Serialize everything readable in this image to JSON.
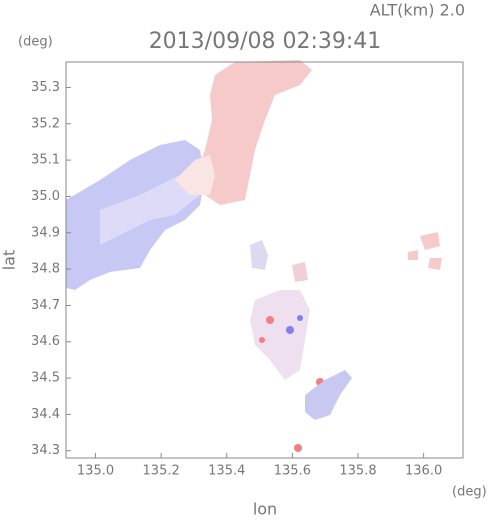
{
  "chart_data": {
    "type": "map",
    "title": "2013/09/08 02:39:41",
    "subtitle": "ALT(km) 2.0",
    "x_label": "lon",
    "x_unit": "(deg)",
    "y_label": "lat",
    "y_unit": "(deg)",
    "xlim": [
      134.91,
      136.12
    ],
    "xticks": [
      {
        "value": 135,
        "label": "135.0"
      },
      135.2,
      135.4,
      135.6,
      135.8,
      {
        "value": 136,
        "label": "136.0"
      }
    ],
    "ylim": [
      34.28,
      35.37
    ],
    "yticks": [
      34.3,
      34.4,
      34.5,
      34.6,
      34.7,
      34.8,
      34.9,
      {
        "value": 35,
        "label": "35.0"
      },
      35.1,
      35.2,
      35.3
    ],
    "frame_color": "#888888"
  }
}
